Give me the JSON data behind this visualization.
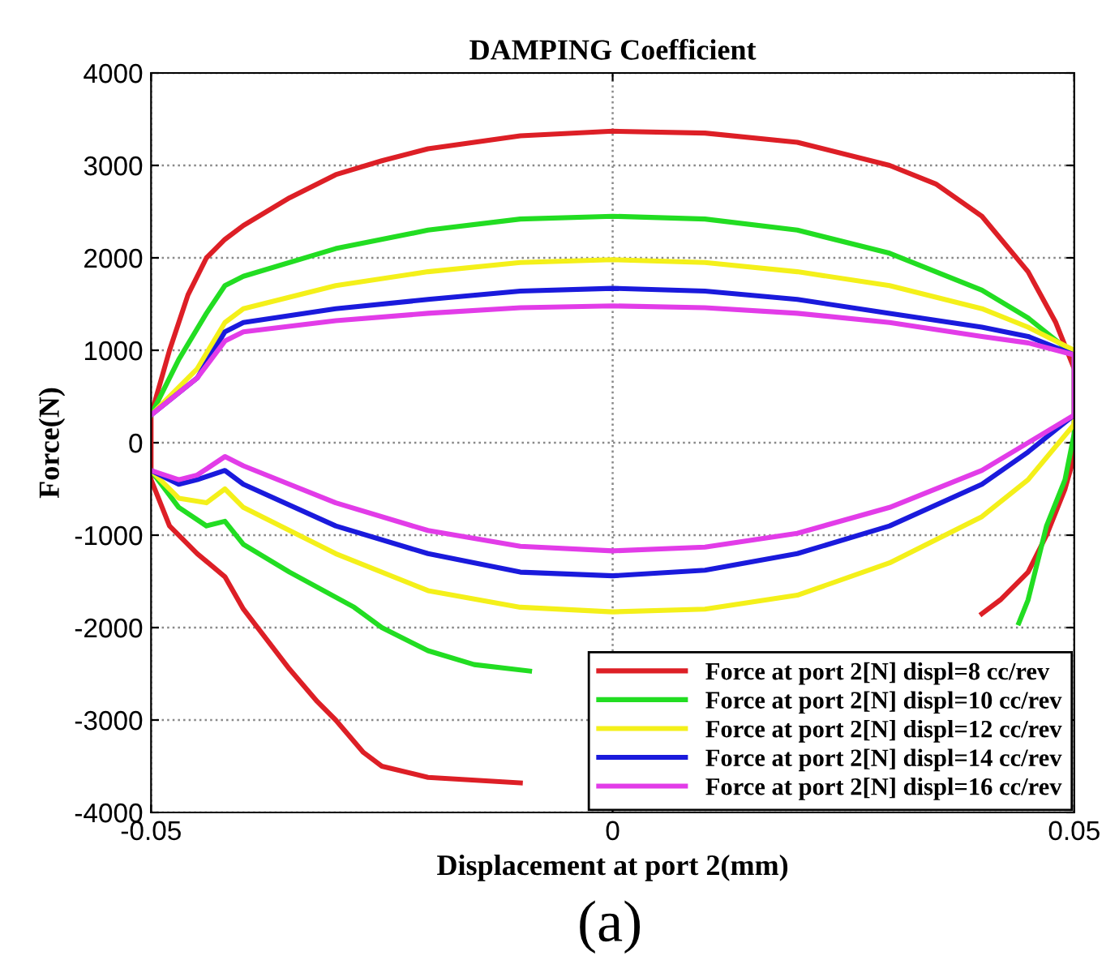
{
  "chart_data": {
    "type": "line",
    "title": "DAMPING Coefficient",
    "xlabel": "Displacement at port 2(mm)",
    "ylabel": "Force(N)",
    "annotations": [
      "(a)"
    ],
    "xlim": [
      -0.05,
      0.05
    ],
    "xticks": [
      -0.05,
      0,
      0.05
    ],
    "ylim": [
      -4000,
      4000
    ],
    "yticks": [
      -4000,
      -3000,
      -2000,
      -1000,
      0,
      1000,
      2000,
      3000,
      4000
    ],
    "grid": true,
    "legend": "bottom right",
    "line_style": "solid",
    "series": [
      {
        "name": "Force at port 2[N] displ=8 cc/rev",
        "color": "#dd1f26",
        "x": [
          -0.05,
          -0.048,
          -0.046,
          -0.044,
          -0.042,
          -0.04,
          -0.035,
          -0.03,
          -0.025,
          -0.02,
          -0.01,
          0,
          0.01,
          0.02,
          0.03,
          0.035,
          0.04,
          0.045,
          0.048,
          0.05,
          0.05,
          0.049,
          0.047,
          0.045,
          0.042,
          0.04,
          0.03,
          -0.01,
          -0.02,
          -0.025,
          -0.027,
          -0.03,
          -0.032,
          -0.035,
          -0.04,
          -0.042,
          -0.045,
          -0.048,
          -0.05,
          -0.05
        ],
        "values": [
          300,
          1000,
          1600,
          2000,
          2200,
          2350,
          2650,
          2900,
          3050,
          3180,
          3320,
          3370,
          3350,
          3250,
          3000,
          2800,
          2450,
          1850,
          1300,
          800,
          -150,
          -500,
          -1000,
          -1400,
          -1700,
          -1850,
          null,
          -3680,
          -3620,
          -3500,
          -3350,
          -3000,
          -2800,
          -2450,
          -1800,
          -1450,
          -1200,
          -900,
          -400,
          300
        ]
      },
      {
        "name": "Force at port 2[N] displ=10 cc/rev",
        "color": "#22dd22",
        "x": [
          -0.05,
          -0.047,
          -0.044,
          -0.042,
          -0.04,
          -0.03,
          -0.02,
          -0.01,
          0,
          0.01,
          0.02,
          0.03,
          0.04,
          0.045,
          0.05,
          0.05,
          0.049,
          0.047,
          0.046,
          0.045,
          0.044,
          0.02,
          -0.009,
          -0.015,
          -0.02,
          -0.025,
          -0.028,
          -0.035,
          -0.04,
          -0.042,
          -0.044,
          -0.047,
          -0.05
        ],
        "values": [
          300,
          900,
          1400,
          1700,
          1800,
          2100,
          2300,
          2420,
          2450,
          2420,
          2300,
          2050,
          1650,
          1350,
          950,
          100,
          -400,
          -900,
          -1300,
          -1700,
          -1950,
          null,
          -2470,
          -2400,
          -2250,
          -2000,
          -1780,
          -1400,
          -1100,
          -850,
          -900,
          -700,
          -300
        ]
      },
      {
        "name": "Force at port 2[N] displ=12 cc/rev",
        "color": "#f4f01a",
        "x": [
          -0.05,
          -0.045,
          -0.042,
          -0.04,
          -0.03,
          -0.02,
          -0.01,
          0,
          0.01,
          0.02,
          0.03,
          0.04,
          0.045,
          0.05,
          0.05,
          0.045,
          0.04,
          0.03,
          0.02,
          0.01,
          0,
          -0.01,
          -0.02,
          -0.03,
          -0.04,
          -0.042,
          -0.044,
          -0.047,
          -0.05
        ],
        "values": [
          300,
          800,
          1300,
          1450,
          1700,
          1850,
          1950,
          1980,
          1950,
          1850,
          1700,
          1450,
          1250,
          1000,
          200,
          -400,
          -800,
          -1300,
          -1650,
          -1800,
          -1830,
          -1780,
          -1600,
          -1200,
          -700,
          -500,
          -650,
          -600,
          -300
        ]
      },
      {
        "name": "Force at port 2[N] displ=14 cc/rev",
        "color": "#1a1adc",
        "x": [
          -0.05,
          -0.045,
          -0.042,
          -0.04,
          -0.03,
          -0.02,
          -0.01,
          0,
          0.01,
          0.02,
          0.03,
          0.04,
          0.045,
          0.05,
          0.05,
          0.045,
          0.04,
          0.03,
          0.02,
          0.01,
          0,
          -0.01,
          -0.02,
          -0.03,
          -0.04,
          -0.042,
          -0.045,
          -0.047,
          -0.05
        ],
        "values": [
          300,
          700,
          1200,
          1300,
          1450,
          1550,
          1640,
          1670,
          1640,
          1550,
          1400,
          1250,
          1150,
          950,
          300,
          -100,
          -450,
          -900,
          -1200,
          -1380,
          -1440,
          -1400,
          -1200,
          -900,
          -450,
          -300,
          -400,
          -450,
          -300
        ]
      },
      {
        "name": "Force at port 2[N] displ=16 cc/rev",
        "color": "#e23ce8",
        "x": [
          -0.05,
          -0.045,
          -0.042,
          -0.04,
          -0.03,
          -0.02,
          -0.01,
          0,
          0.01,
          0.02,
          0.03,
          0.04,
          0.045,
          0.05,
          0.05,
          0.045,
          0.04,
          0.03,
          0.02,
          0.01,
          0,
          -0.01,
          -0.02,
          -0.03,
          -0.04,
          -0.042,
          -0.045,
          -0.047,
          -0.05
        ],
        "values": [
          300,
          700,
          1100,
          1200,
          1320,
          1400,
          1460,
          1480,
          1460,
          1400,
          1300,
          1150,
          1080,
          950,
          300,
          0,
          -300,
          -700,
          -980,
          -1130,
          -1170,
          -1120,
          -950,
          -650,
          -250,
          -150,
          -350,
          -400,
          -300
        ]
      }
    ]
  }
}
